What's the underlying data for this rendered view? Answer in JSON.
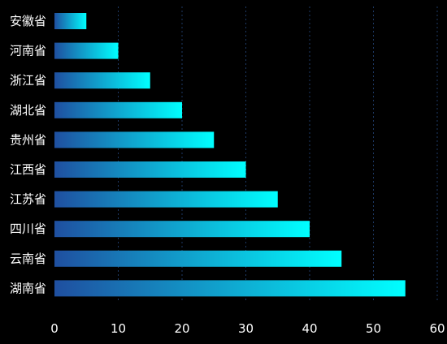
{
  "chart_data": {
    "type": "bar",
    "orientation": "horizontal",
    "categories": [
      "安徽省",
      "河南省",
      "浙江省",
      "湖北省",
      "贵州省",
      "江西省",
      "江苏省",
      "四川省",
      "云南省",
      "湖南省"
    ],
    "values": [
      5,
      10,
      15,
      20,
      25,
      30,
      35,
      40,
      45,
      55
    ],
    "title": "",
    "xlabel": "",
    "ylabel": "",
    "xlim": [
      0,
      60
    ],
    "xticks": [
      "0",
      "10",
      "20",
      "30",
      "40",
      "50",
      "60"
    ],
    "grid": true,
    "legend": "none",
    "colors": {
      "background": "#000000",
      "bar_gradient_start": "#1f4fa0",
      "bar_gradient_end": "#00ffff",
      "grid": "#1e3a66",
      "label": "#ffffff"
    }
  }
}
